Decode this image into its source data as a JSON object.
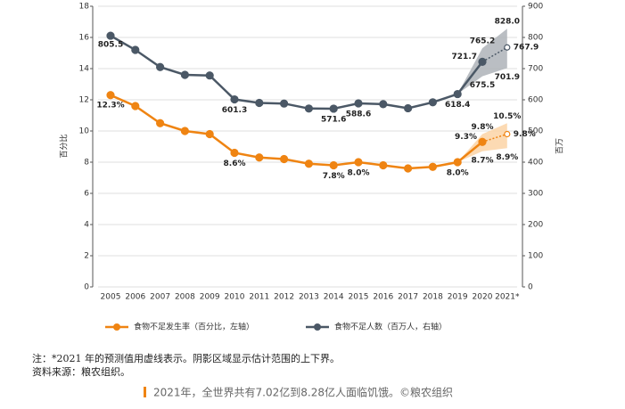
{
  "chart_data": {
    "type": "line",
    "y_label": "百分比",
    "y2_label": "百万",
    "categories": [
      "2005",
      "2006",
      "2007",
      "2008",
      "2009",
      "2010",
      "2011",
      "2012",
      "2013",
      "2014",
      "2015",
      "2016",
      "2017",
      "2018",
      "2019",
      "2020",
      "2021*"
    ],
    "ylim": [
      0,
      18
    ],
    "yticks": [
      0,
      2,
      4,
      6,
      8,
      10,
      12,
      14,
      16,
      18
    ],
    "y2lim": [
      0,
      900
    ],
    "y2ticks": [
      0,
      100,
      200,
      300,
      400,
      500,
      600,
      700,
      800,
      900
    ],
    "grid": true,
    "dashed_last_segment": true,
    "series": [
      {
        "name": "食物不足发生率（百分比，左轴）",
        "color": "#ef8412",
        "band_color": "#fbd3a6",
        "axis": "y",
        "values": [
          12.3,
          11.6,
          10.5,
          10.0,
          9.8,
          8.6,
          8.3,
          8.2,
          7.9,
          7.8,
          8.0,
          7.8,
          7.6,
          7.7,
          8.0,
          9.3,
          9.8
        ],
        "value_labels": [
          "12.3%",
          null,
          null,
          null,
          null,
          "8.6%",
          null,
          null,
          null,
          "7.8%",
          "8.0%",
          null,
          null,
          null,
          "8.0%",
          "9.3%",
          "9.8%"
        ],
        "lower": [
          null,
          null,
          null,
          null,
          null,
          null,
          null,
          null,
          null,
          null,
          null,
          null,
          null,
          null,
          null,
          8.7,
          8.9
        ],
        "upper": [
          null,
          null,
          null,
          null,
          null,
          null,
          null,
          null,
          null,
          null,
          null,
          null,
          null,
          null,
          null,
          9.8,
          10.5
        ],
        "lower_labels": [
          null,
          null,
          null,
          null,
          null,
          null,
          null,
          null,
          null,
          null,
          null,
          null,
          null,
          null,
          null,
          "8.7%",
          "8.9%"
        ],
        "upper_labels": [
          null,
          null,
          null,
          null,
          null,
          null,
          null,
          null,
          null,
          null,
          null,
          null,
          null,
          null,
          null,
          "9.8%",
          "10.5%"
        ]
      },
      {
        "name": "食物不足人数（百万人，右轴）",
        "color": "#4b5866",
        "band_color": "#aeb3b9",
        "axis": "y2",
        "values": [
          805.5,
          760,
          705,
          680,
          678,
          601.3,
          590,
          588,
          572,
          571.6,
          588.6,
          586,
          573,
          592,
          618.4,
          721.7,
          767.9
        ],
        "value_labels": [
          "805.5",
          null,
          null,
          null,
          null,
          "601.3",
          null,
          null,
          null,
          "571.6",
          "588.6",
          null,
          null,
          null,
          "618.4",
          "721.7",
          "767.9"
        ],
        "lower": [
          null,
          null,
          null,
          null,
          null,
          null,
          null,
          null,
          null,
          null,
          null,
          null,
          null,
          null,
          null,
          675.5,
          701.9
        ],
        "upper": [
          null,
          null,
          null,
          null,
          null,
          null,
          null,
          null,
          null,
          null,
          null,
          null,
          null,
          null,
          null,
          765.2,
          828.0
        ],
        "lower_labels": [
          null,
          null,
          null,
          null,
          null,
          null,
          null,
          null,
          null,
          null,
          null,
          null,
          null,
          null,
          null,
          "675.5",
          "701.9"
        ],
        "upper_labels": [
          null,
          null,
          null,
          null,
          null,
          null,
          null,
          null,
          null,
          null,
          null,
          null,
          null,
          null,
          null,
          "765.2",
          "828.0"
        ]
      }
    ]
  },
  "notes": [
    "注：*2021 年的预测值用虚线表示。阴影区域显示估计范围的上下界。",
    "资料来源：粮农组织。"
  ],
  "caption": "2021年，全世界共有7.02亿到8.28亿人面临饥饿。©粮农组织"
}
